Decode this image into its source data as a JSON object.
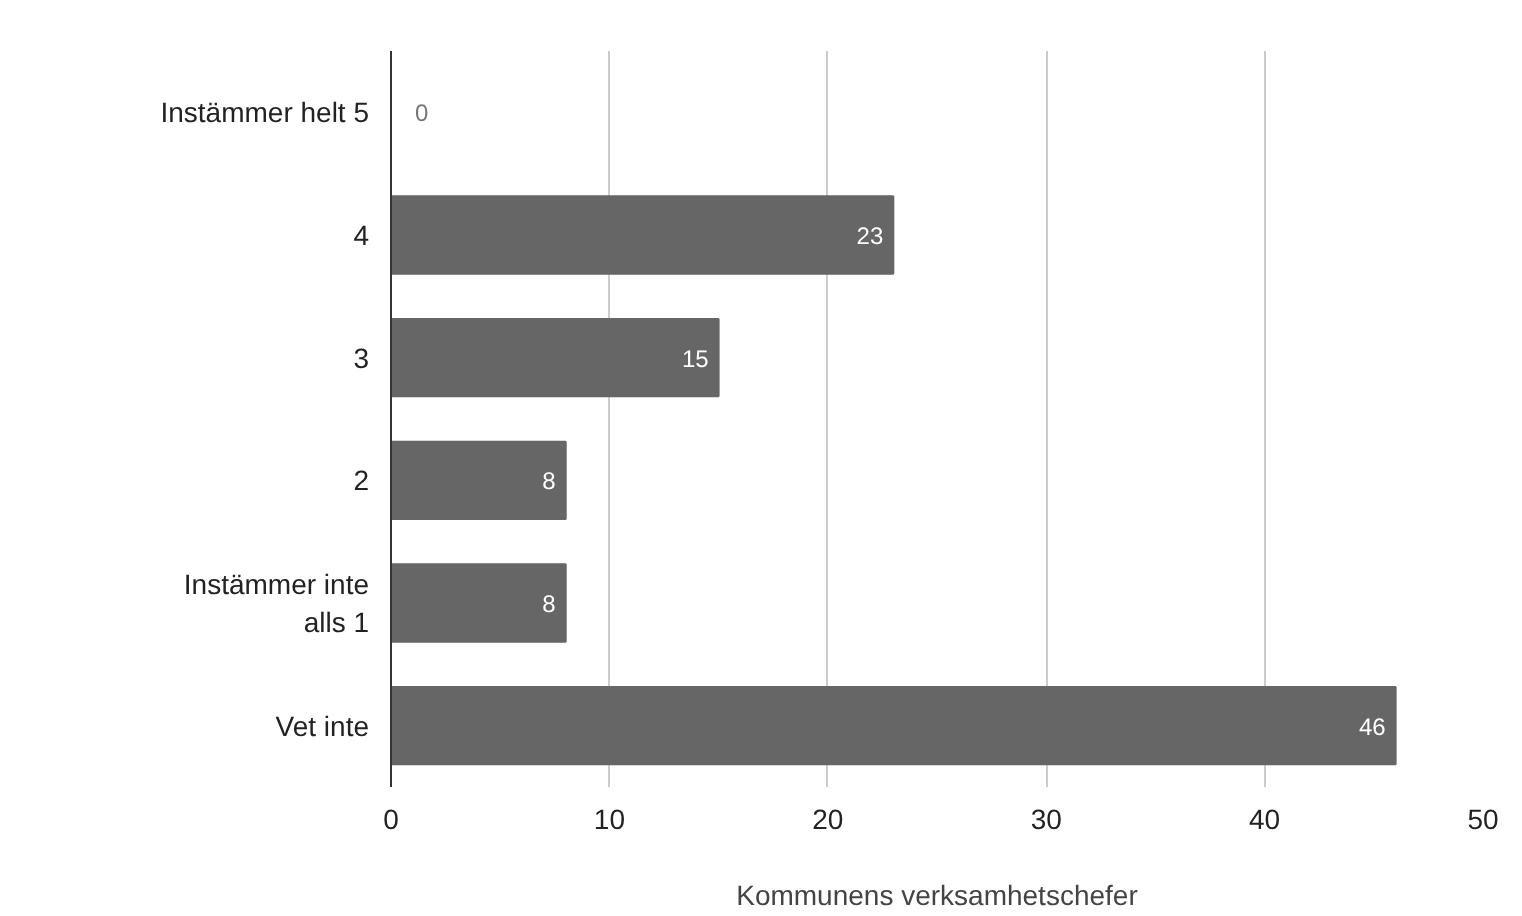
{
  "chart_data": {
    "type": "bar",
    "orientation": "horizontal",
    "xlabel": "Kommunens verksamhetschefer",
    "categories": [
      "Instämmer helt 5",
      "4",
      "3",
      "2",
      "Instämmer inte alls 1",
      "Vet inte"
    ],
    "values": [
      0,
      23,
      15,
      8,
      8,
      46
    ],
    "color": "#666666",
    "xlim": [
      0,
      50
    ],
    "xticks": [
      0,
      10,
      20,
      30,
      40,
      50
    ],
    "grid": "x",
    "data_labels": true
  }
}
